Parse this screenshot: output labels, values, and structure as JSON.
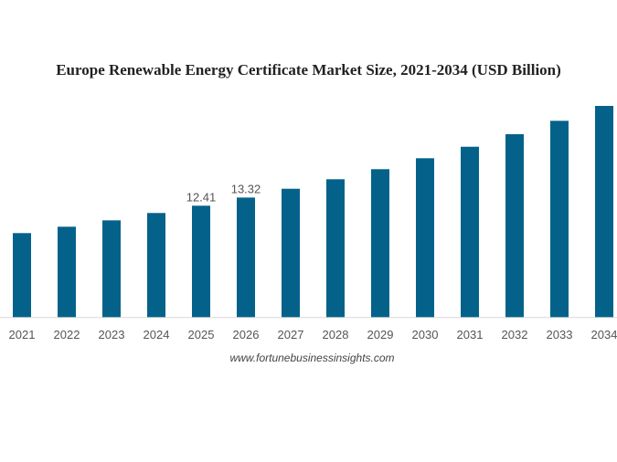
{
  "chart_data": {
    "type": "bar",
    "title": "Europe Renewable Energy Certificate Market Size, 2021-2034 (USD Billion)",
    "xlabel": "",
    "ylabel": "",
    "categories": [
      "2021",
      "2022",
      "2023",
      "2024",
      "2025",
      "2026",
      "2027",
      "2028",
      "2029",
      "2030",
      "2031",
      "2032",
      "2033",
      "2034"
    ],
    "values": [
      9.36,
      10.07,
      10.78,
      11.6,
      12.41,
      13.32,
      14.3,
      15.36,
      16.48,
      17.7,
      18.98,
      20.38,
      21.87,
      23.53
    ],
    "data_labels": {
      "2025": "12.41",
      "2026": "13.32"
    },
    "ylim": [
      0,
      24
    ],
    "grid": false,
    "bar_color": "#04628A"
  },
  "source": "www.fortunebusinessinsights.com"
}
